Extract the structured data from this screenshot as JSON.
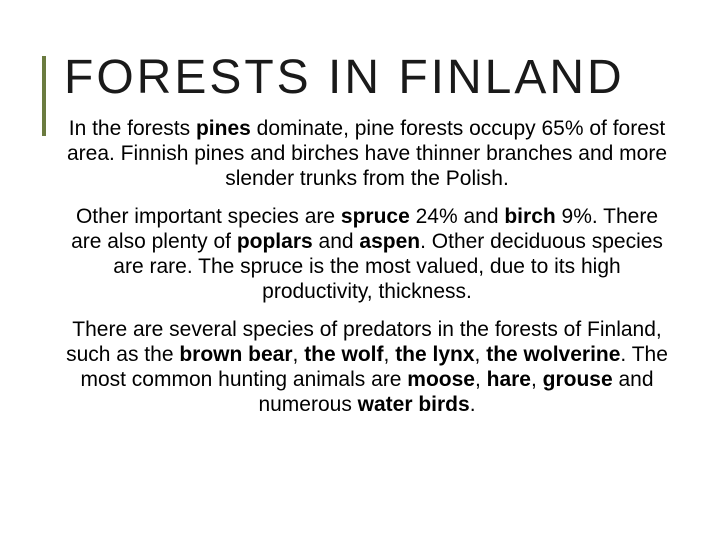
{
  "slide": {
    "title": "FORESTS IN FINLAND",
    "accent_color": "#6b7b3f",
    "background_color": "#ffffff",
    "title_fontsize": 48,
    "title_letter_spacing": 3,
    "body_fontsize": 21,
    "paragraphs": [
      {
        "runs": [
          {
            "t": "In the forests ",
            "b": false
          },
          {
            "t": "pines",
            "b": true
          },
          {
            "t": " dominate, pine forests occupy 65% of forest area. Finnish pines and birches have thinner branches and more slender trunks from the Polish.",
            "b": false
          }
        ]
      },
      {
        "runs": [
          {
            "t": "Other important species are ",
            "b": false
          },
          {
            "t": "spruce",
            "b": true
          },
          {
            "t": " 24% and ",
            "b": false
          },
          {
            "t": "birch",
            "b": true
          },
          {
            "t": " 9%. There are also plenty of ",
            "b": false
          },
          {
            "t": "poplars",
            "b": true
          },
          {
            "t": " and ",
            "b": false
          },
          {
            "t": "aspen",
            "b": true
          },
          {
            "t": ". Other deciduous species are rare. The spruce is the most valued, due to its high productivity, thickness.",
            "b": false
          }
        ]
      },
      {
        "runs": [
          {
            "t": "There are several species of predators in the forests of Finland, such as the ",
            "b": false
          },
          {
            "t": "brown bear",
            "b": true
          },
          {
            "t": ", ",
            "b": false
          },
          {
            "t": "the wolf",
            "b": true
          },
          {
            "t": ", ",
            "b": false
          },
          {
            "t": "the lynx",
            "b": true
          },
          {
            "t": ", ",
            "b": false
          },
          {
            "t": "the wolverine",
            "b": true
          },
          {
            "t": ". The most common hunting animals are ",
            "b": false
          },
          {
            "t": "moose",
            "b": true
          },
          {
            "t": ", ",
            "b": false
          },
          {
            "t": "hare",
            "b": true
          },
          {
            "t": ", ",
            "b": false
          },
          {
            "t": "grouse",
            "b": true
          },
          {
            "t": " and numerous ",
            "b": false
          },
          {
            "t": "water birds",
            "b": true
          },
          {
            "t": ".",
            "b": false
          }
        ]
      }
    ]
  }
}
